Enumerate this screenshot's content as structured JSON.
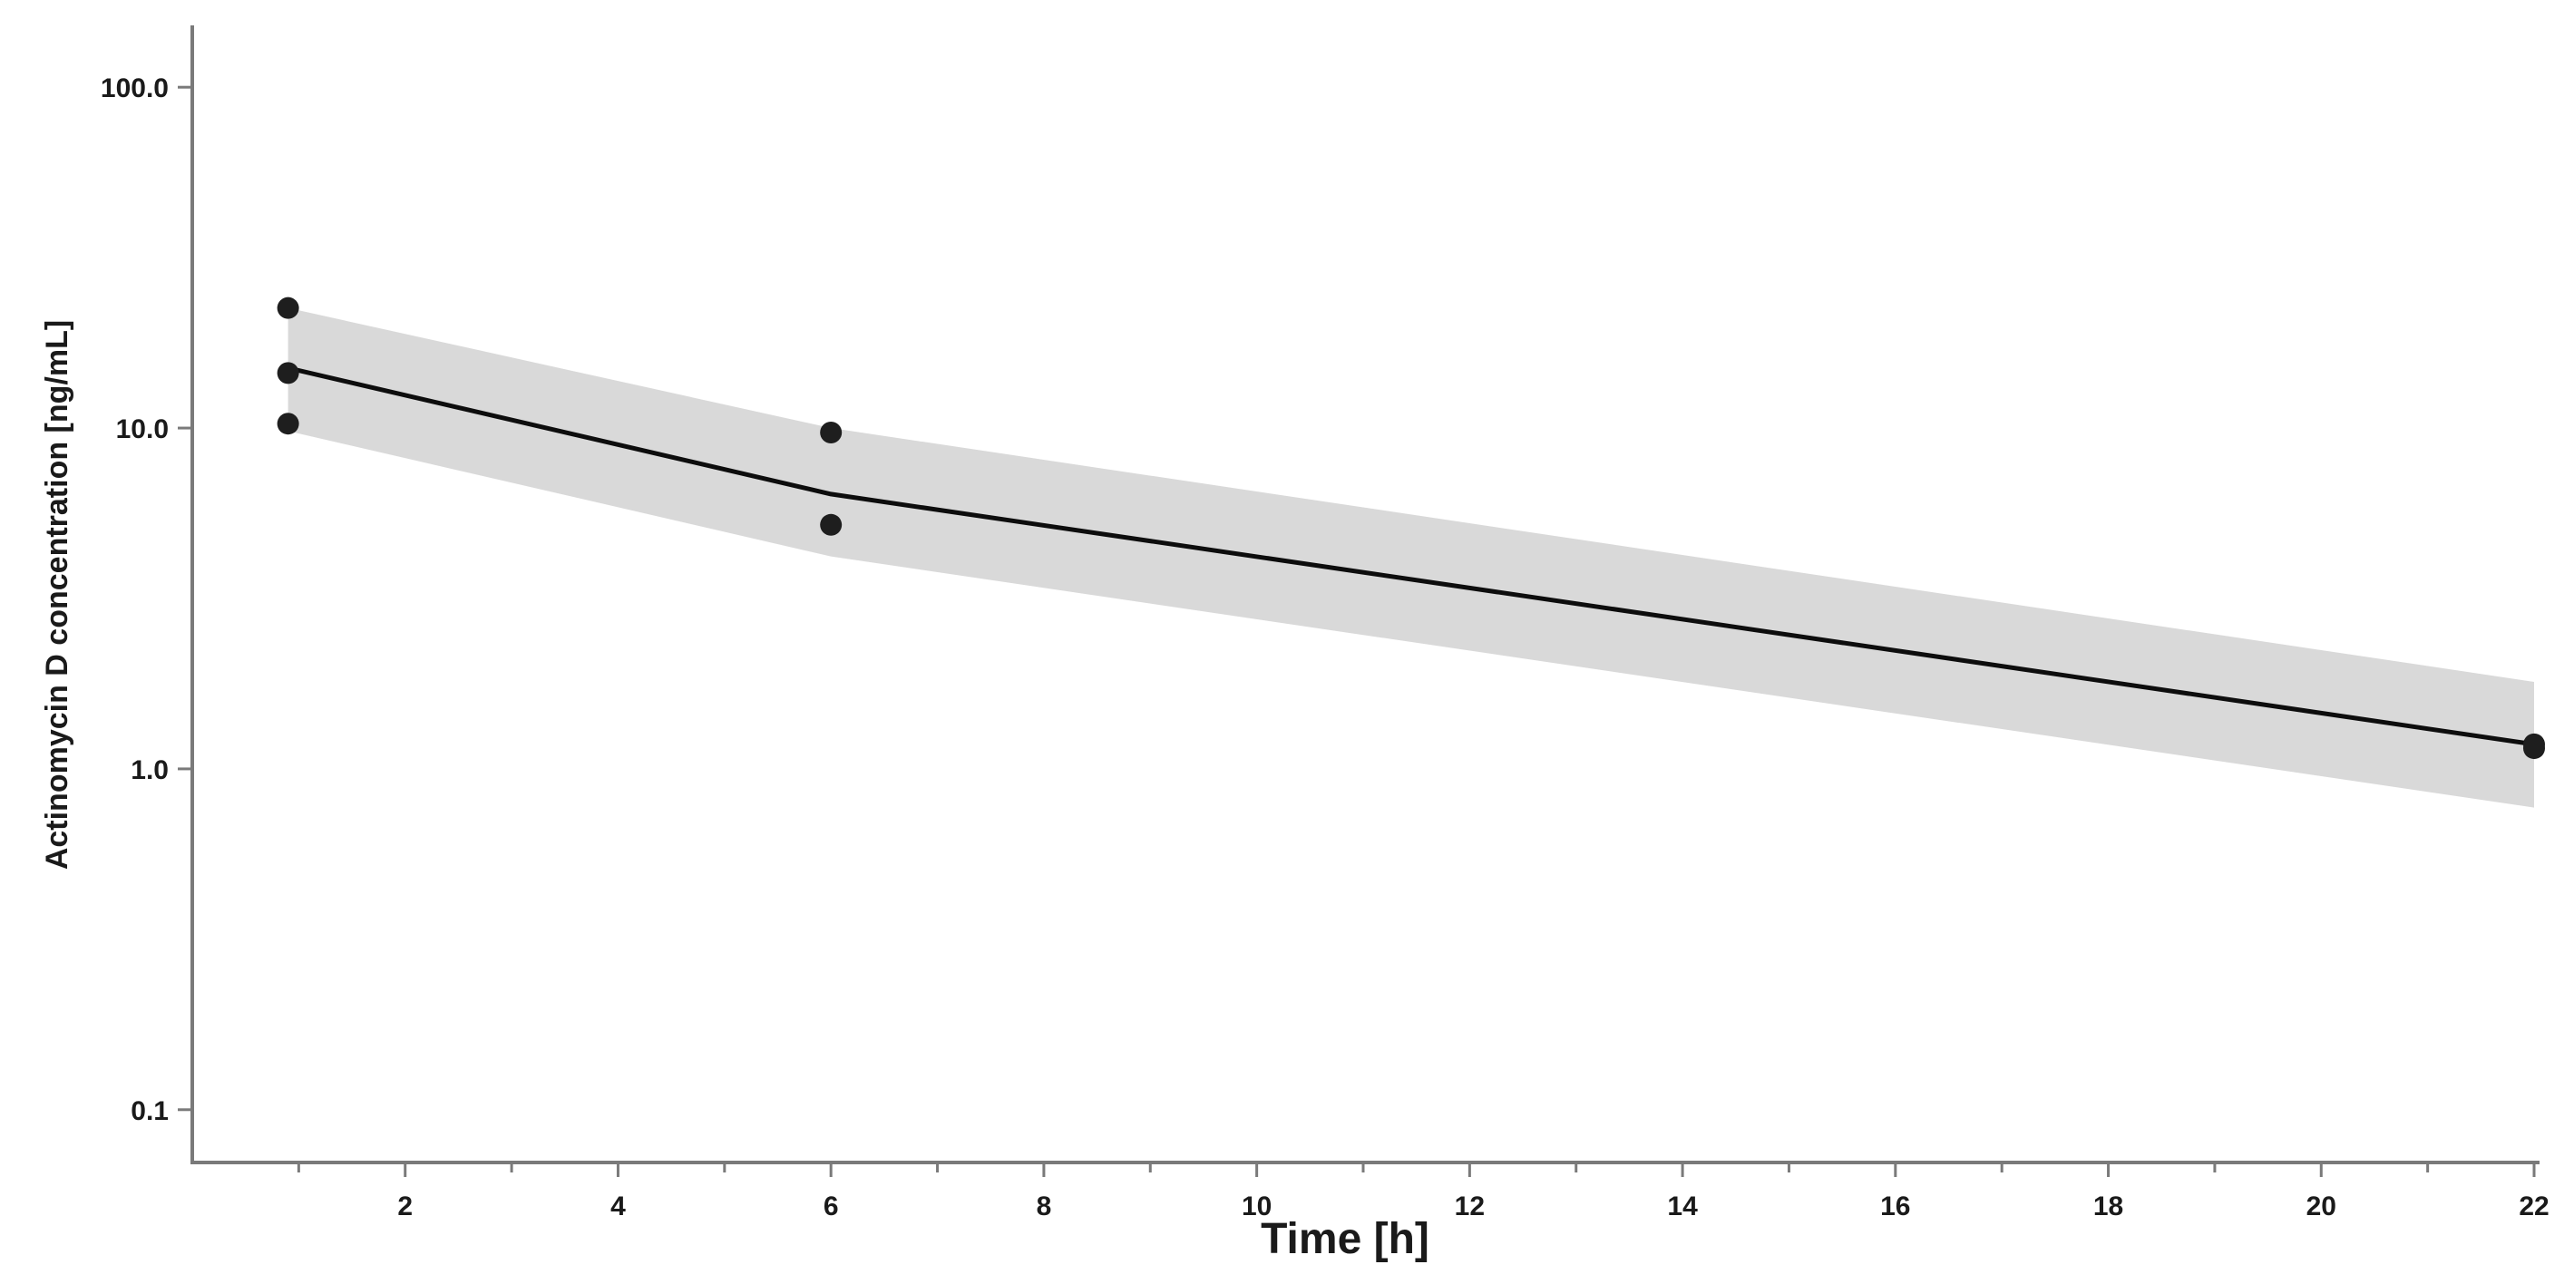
{
  "chart_data": {
    "type": "line",
    "title": "",
    "xlabel": "Time [h]",
    "ylabel": "Actinomycin D concentration [ng/mL]",
    "xlim": [
      0,
      22
    ],
    "ylim": [
      0.07,
      150
    ],
    "y_scale": "log",
    "grid": false,
    "x_ticks_major": [
      2,
      4,
      6,
      8,
      10,
      12,
      14,
      16,
      18,
      20,
      22
    ],
    "x_tick_labels": [
      "2",
      "4",
      "6",
      "8",
      "10",
      "12",
      "14",
      "16",
      "18",
      "20",
      "22"
    ],
    "y_ticks": [
      0.1,
      1.0,
      10.0,
      100.0
    ],
    "y_tick_labels": [
      "0.1",
      "1.0",
      "10.0",
      "100.0"
    ],
    "prediction_line": {
      "x": [
        0.9,
        6,
        22
      ],
      "y": [
        15.0,
        6.4,
        1.18
      ]
    },
    "confidence_band": {
      "x": [
        0.9,
        6,
        22
      ],
      "upper": [
        22.5,
        10.0,
        1.8
      ],
      "lower": [
        9.8,
        4.2,
        0.77
      ]
    },
    "observations": {
      "x": [
        0.9,
        0.9,
        0.9,
        6,
        6,
        22,
        22
      ],
      "y": [
        22.5,
        14.5,
        10.3,
        9.7,
        5.2,
        1.18,
        1.15
      ]
    },
    "colors": {
      "line": "#0d0d0d",
      "band": "#d9d9d9",
      "points": "#1e1e1e",
      "axis": "#7a7a7a"
    }
  }
}
